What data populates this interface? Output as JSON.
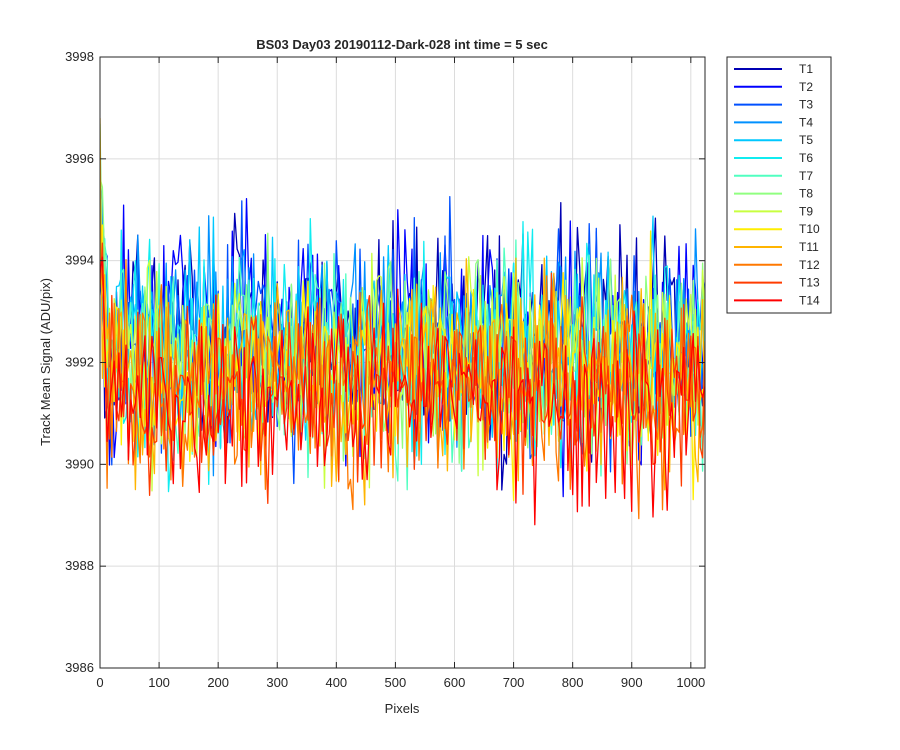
{
  "chart_data": {
    "type": "line",
    "title": "BS03 Day03 20190112-Dark-028 int time = 5 sec",
    "xlabel": "Pixels",
    "ylabel": "Track Mean Signal (ADU/pix)",
    "xlim": [
      0,
      1024
    ],
    "ylim": [
      3986,
      3998
    ],
    "x_ticks": [
      0,
      100,
      200,
      300,
      400,
      500,
      600,
      700,
      800,
      900,
      1000
    ],
    "x_tick_labels": [
      "0",
      "100",
      "200",
      "300",
      "400",
      "500",
      "600",
      "700",
      "800",
      "900",
      "1000"
    ],
    "y_ticks": [
      3986,
      3988,
      3990,
      3992,
      3994,
      3996,
      3998
    ],
    "y_tick_labels": [
      "3986",
      "3988",
      "3990",
      "3992",
      "3994",
      "3996",
      "3998"
    ],
    "grid": true,
    "legend_position": "outside-top-right",
    "x_step": 4,
    "series": [
      {
        "name": "T1",
        "color": "#0000b3",
        "mean": 3992.6,
        "spread": 1.1
      },
      {
        "name": "T2",
        "color": "#0000ff",
        "mean": 3992.5,
        "spread": 1.1
      },
      {
        "name": "T3",
        "color": "#0050ff",
        "mean": 3992.4,
        "spread": 1.05
      },
      {
        "name": "T4",
        "color": "#0090ff",
        "mean": 3992.4,
        "spread": 1.05
      },
      {
        "name": "T5",
        "color": "#00c8ff",
        "mean": 3992.3,
        "spread": 1.0
      },
      {
        "name": "T6",
        "color": "#10ecf0",
        "mean": 3992.2,
        "spread": 1.0
      },
      {
        "name": "T7",
        "color": "#50ffc0",
        "mean": 3992.1,
        "spread": 1.0
      },
      {
        "name": "T8",
        "color": "#90ff80",
        "mean": 3992.0,
        "spread": 0.95
      },
      {
        "name": "T9",
        "color": "#c8ff40",
        "mean": 3991.9,
        "spread": 0.95
      },
      {
        "name": "T10",
        "color": "#ffee00",
        "mean": 3991.8,
        "spread": 0.95
      },
      {
        "name": "T11",
        "color": "#ffb400",
        "mean": 3991.7,
        "spread": 0.95
      },
      {
        "name": "T12",
        "color": "#ff7800",
        "mean": 3991.6,
        "spread": 0.95
      },
      {
        "name": "T13",
        "color": "#ff3c00",
        "mean": 3991.4,
        "spread": 0.9
      },
      {
        "name": "T14",
        "color": "#ff0000",
        "mean": 3991.2,
        "spread": 0.85
      }
    ]
  }
}
